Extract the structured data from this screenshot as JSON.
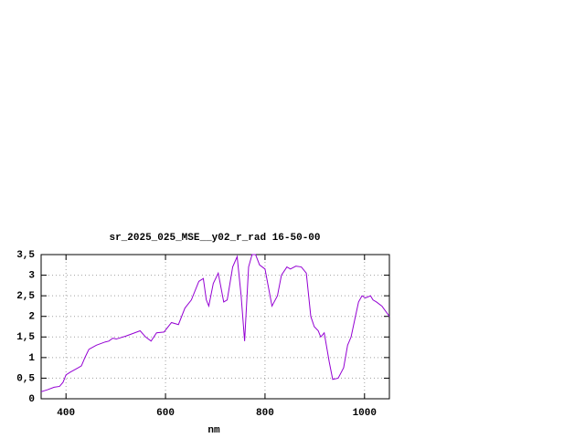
{
  "chart_data": {
    "type": "line",
    "title": "sr_2025_025_MSE__y02_r_rad 16-50-00",
    "x_label": "nm",
    "x": [
      350,
      363,
      376,
      387,
      394,
      400,
      409,
      424,
      431,
      438,
      446,
      461,
      479,
      486,
      494,
      501,
      520,
      538,
      549,
      560,
      571,
      582,
      597,
      612,
      626,
      639,
      652,
      667,
      676,
      682,
      687,
      696,
      706,
      717,
      724,
      735,
      744,
      752,
      759,
      767,
      774,
      781,
      789,
      800,
      807,
      814,
      825,
      833,
      844,
      851,
      862,
      873,
      883,
      892,
      899,
      907,
      912,
      919,
      929,
      936,
      947,
      958,
      966,
      973,
      980,
      988,
      995,
      1002,
      1012,
      1017,
      1024,
      1035,
      1050
    ],
    "series": [
      {
        "color": "#9400d3",
        "values": [
          0.17,
          0.22,
          0.28,
          0.3,
          0.4,
          0.58,
          0.65,
          0.75,
          0.8,
          1.0,
          1.2,
          1.3,
          1.38,
          1.4,
          1.47,
          1.45,
          1.52,
          1.6,
          1.65,
          1.5,
          1.4,
          1.6,
          1.62,
          1.85,
          1.8,
          2.2,
          2.4,
          2.85,
          2.92,
          2.4,
          2.25,
          2.8,
          3.05,
          2.35,
          2.4,
          3.2,
          3.45,
          2.5,
          1.4,
          3.2,
          3.5,
          3.5,
          3.25,
          3.15,
          2.7,
          2.25,
          2.5,
          3.0,
          3.2,
          3.15,
          3.22,
          3.2,
          3.05,
          2.0,
          1.75,
          1.65,
          1.5,
          1.6,
          0.9,
          0.47,
          0.5,
          0.75,
          1.3,
          1.5,
          1.9,
          2.35,
          2.5,
          2.45,
          2.5,
          2.4,
          2.35,
          2.25,
          2.0
        ]
      }
    ],
    "xlim": [
      350,
      1050
    ],
    "xticks": [
      400,
      600,
      800,
      1000
    ],
    "ylim": [
      0,
      3.5
    ],
    "yticks": [
      0,
      {
        "value": 0.5,
        "label": "0,5"
      },
      1,
      {
        "value": 1.5,
        "label": "1,5"
      },
      2,
      {
        "value": 2.5,
        "label": "2,5"
      },
      3,
      {
        "value": 3.5,
        "label": "3,5"
      }
    ],
    "grid": true
  }
}
